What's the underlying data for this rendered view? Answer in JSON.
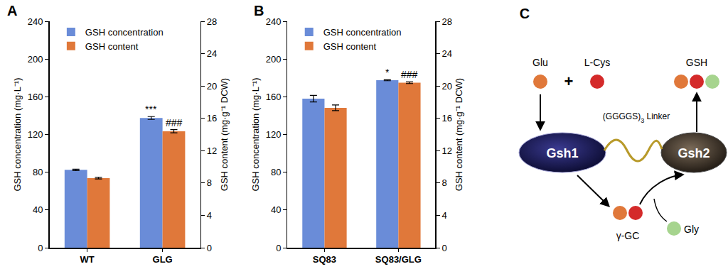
{
  "chart_data": [
    {
      "type": "bar",
      "title": "A",
      "categories": [
        "WT",
        "GLG"
      ],
      "series": [
        {
          "name": "GSH concentration",
          "color": "#6a8cd8",
          "values": [
            82.5,
            137.5
          ],
          "errors": [
            0.8,
            1.5
          ]
        },
        {
          "name": "GSH content",
          "color": "#e0783a",
          "values": [
            8.6,
            14.4
          ],
          "errors": [
            0.1,
            0.2
          ],
          "axis": "y2"
        }
      ],
      "y_label": "GSH concentration (mg·L⁻¹)",
      "y2_label": "GSH content (mg·g⁻¹ DCW)",
      "ylim": [
        0,
        240
      ],
      "yticks": [
        0,
        40,
        80,
        120,
        160,
        200,
        240
      ],
      "y2lim": [
        0,
        28
      ],
      "y2ticks": [
        0,
        4,
        8,
        12,
        16,
        20,
        24,
        28
      ],
      "grid": false,
      "legend": "upper left",
      "annotations": [
        {
          "text": "***",
          "category": "GLG",
          "series": "GSH concentration"
        },
        {
          "text": "###",
          "category": "GLG",
          "series": "GSH content"
        }
      ]
    },
    {
      "type": "bar",
      "title": "B",
      "categories": [
        "SQ83",
        "SQ83/GLG"
      ],
      "series": [
        {
          "name": "GSH concentration",
          "color": "#6a8cd8",
          "values": [
            158,
            177.5
          ],
          "errors": [
            3.5,
            0.5
          ]
        },
        {
          "name": "GSH content",
          "color": "#e0783a",
          "values": [
            17.3,
            20.4
          ],
          "errors": [
            0.35,
            0.1
          ],
          "axis": "y2"
        }
      ],
      "y_label": "GSH concentration (mg·L⁻¹)",
      "y2_label": "GSH content (mg·g⁻¹ DCW)",
      "ylim": [
        0,
        240
      ],
      "yticks": [
        0,
        40,
        80,
        120,
        160,
        200,
        240
      ],
      "y2lim": [
        0,
        28
      ],
      "y2ticks": [
        0,
        4,
        8,
        12,
        16,
        20,
        24,
        28
      ],
      "grid": false,
      "legend": "upper left",
      "annotations": [
        {
          "text": "*",
          "category": "SQ83/GLG",
          "series": "GSH concentration"
        },
        {
          "text": "###",
          "category": "SQ83/GLG",
          "series": "GSH content"
        }
      ]
    }
  ],
  "diagram": {
    "panel": "C",
    "substrates": [
      "Glu",
      "L-Cys"
    ],
    "plus": "+",
    "product": "GSH",
    "enzymes": [
      "Gsh1",
      "Gsh2"
    ],
    "linker": "(GGGGS)",
    "linker_subscript": "3",
    "linker_suffix": " Linker",
    "intermediate": "γ-GC",
    "cosubstrate": "Gly"
  }
}
